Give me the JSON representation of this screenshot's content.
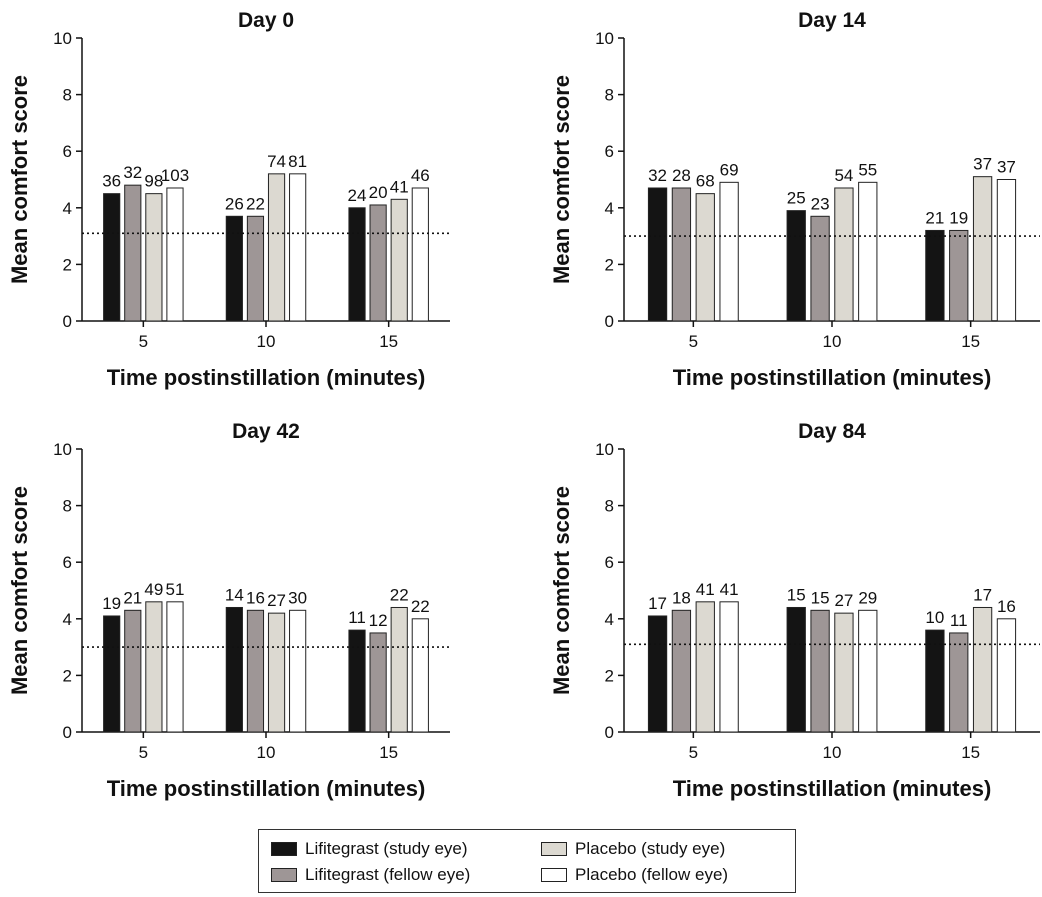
{
  "legend": {
    "items": [
      {
        "label": "Lifitegrast (study eye)",
        "color": "#141414"
      },
      {
        "label": "Lifitegrast (fellow eye)",
        "color": "#9e9696"
      },
      {
        "label": "Placebo (study eye)",
        "color": "#dcd9d1"
      },
      {
        "label": "Placebo (fellow eye)",
        "color": "#ffffff"
      }
    ]
  },
  "chart_data": [
    {
      "type": "bar",
      "title": "Day 0",
      "xlabel": "Time postinstillation (minutes)",
      "ylabel": "Mean comfort score",
      "ylim": [
        0,
        10
      ],
      "yticks": [
        0,
        2,
        4,
        6,
        8,
        10
      ],
      "categories": [
        "5",
        "10",
        "15"
      ],
      "reference_line": 3.1,
      "series": [
        {
          "name": "Lifitegrast (study eye)",
          "values": [
            4.5,
            3.7,
            4.0
          ],
          "n": [
            36,
            26,
            24
          ]
        },
        {
          "name": "Lifitegrast (fellow eye)",
          "values": [
            4.8,
            3.7,
            4.1
          ],
          "n": [
            32,
            22,
            20
          ]
        },
        {
          "name": "Placebo (study eye)",
          "values": [
            4.5,
            5.2,
            4.3
          ],
          "n": [
            98,
            74,
            41
          ]
        },
        {
          "name": "Placebo (fellow eye)",
          "values": [
            4.7,
            5.2,
            4.7
          ],
          "n": [
            103,
            81,
            46
          ]
        }
      ]
    },
    {
      "type": "bar",
      "title": "Day 14",
      "xlabel": "Time postinstillation (minutes)",
      "ylabel": "Mean comfort score",
      "ylim": [
        0,
        10
      ],
      "yticks": [
        0,
        2,
        4,
        6,
        8,
        10
      ],
      "categories": [
        "5",
        "10",
        "15"
      ],
      "reference_line": 3.0,
      "series": [
        {
          "name": "Lifitegrast (study eye)",
          "values": [
            4.7,
            3.9,
            3.2
          ],
          "n": [
            32,
            25,
            21
          ]
        },
        {
          "name": "Lifitegrast (fellow eye)",
          "values": [
            4.7,
            3.7,
            3.2
          ],
          "n": [
            28,
            23,
            19
          ]
        },
        {
          "name": "Placebo (study eye)",
          "values": [
            4.5,
            4.7,
            5.1
          ],
          "n": [
            68,
            54,
            37
          ]
        },
        {
          "name": "Placebo (fellow eye)",
          "values": [
            4.9,
            4.9,
            5.0
          ],
          "n": [
            69,
            55,
            37
          ]
        }
      ]
    },
    {
      "type": "bar",
      "title": "Day 42",
      "xlabel": "Time postinstillation (minutes)",
      "ylabel": "Mean comfort score",
      "ylim": [
        0,
        10
      ],
      "yticks": [
        0,
        2,
        4,
        6,
        8,
        10
      ],
      "categories": [
        "5",
        "10",
        "15"
      ],
      "reference_line": 3.0,
      "series": [
        {
          "name": "Lifitegrast (study eye)",
          "values": [
            4.1,
            4.4,
            3.6
          ],
          "n": [
            19,
            14,
            11
          ]
        },
        {
          "name": "Lifitegrast (fellow eye)",
          "values": [
            4.3,
            4.3,
            3.5
          ],
          "n": [
            21,
            16,
            12
          ]
        },
        {
          "name": "Placebo (study eye)",
          "values": [
            4.6,
            4.2,
            4.4
          ],
          "n": [
            49,
            27,
            22
          ]
        },
        {
          "name": "Placebo (fellow eye)",
          "values": [
            4.6,
            4.3,
            4.0
          ],
          "n": [
            51,
            30,
            22
          ]
        }
      ]
    },
    {
      "type": "bar",
      "title": "Day 84",
      "xlabel": "Time postinstillation (minutes)",
      "ylabel": "Mean comfort score",
      "ylim": [
        0,
        10
      ],
      "yticks": [
        0,
        2,
        4,
        6,
        8,
        10
      ],
      "categories": [
        "5",
        "10",
        "15"
      ],
      "reference_line": 3.1,
      "series": [
        {
          "name": "Lifitegrast (study eye)",
          "values": [
            4.1,
            4.4,
            3.6
          ],
          "n": [
            17,
            15,
            10
          ]
        },
        {
          "name": "Lifitegrast (fellow eye)",
          "values": [
            4.3,
            4.3,
            3.5
          ],
          "n": [
            18,
            15,
            11
          ]
        },
        {
          "name": "Placebo (study eye)",
          "values": [
            4.6,
            4.2,
            4.4
          ],
          "n": [
            41,
            27,
            17
          ]
        },
        {
          "name": "Placebo (fellow eye)",
          "values": [
            4.6,
            4.3,
            4.0
          ],
          "n": [
            41,
            29,
            16
          ]
        }
      ]
    }
  ]
}
